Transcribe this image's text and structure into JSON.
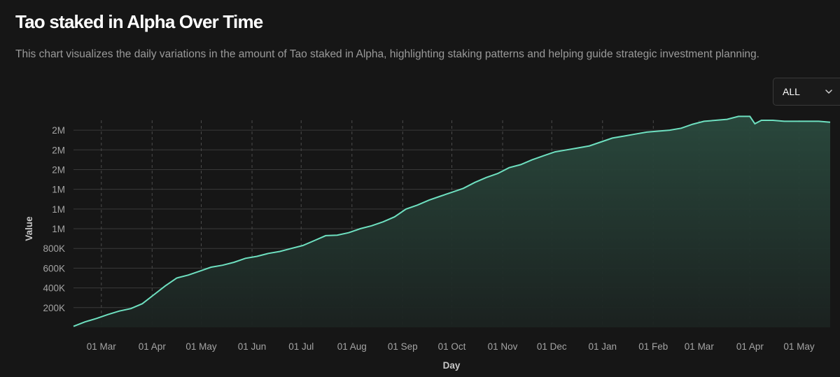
{
  "header": {
    "title": "Tao staked in Alpha Over Time",
    "subtitle": "This chart visualizes the daily variations in the amount of Tao staked in Alpha, highlighting staking patterns and helping guide strategic investment planning."
  },
  "controls": {
    "range_value": "ALL"
  },
  "icons": {
    "dropdown": "chevron-down-icon"
  },
  "colors": {
    "line": "#6ee0c0",
    "background": "#161616"
  },
  "chart_data": {
    "type": "area",
    "xlabel": "Day",
    "ylabel": "Value",
    "ylim": [
      0,
      2100000
    ],
    "y_ticks": [
      {
        "value": 200000,
        "label": "200K"
      },
      {
        "value": 400000,
        "label": "400K"
      },
      {
        "value": 600000,
        "label": "600K"
      },
      {
        "value": 800000,
        "label": "800K"
      },
      {
        "value": 1000000,
        "label": "1M"
      },
      {
        "value": 1200000,
        "label": "1M"
      },
      {
        "value": 1400000,
        "label": "1M"
      },
      {
        "value": 1600000,
        "label": "2M"
      },
      {
        "value": 1800000,
        "label": "2M"
      },
      {
        "value": 2000000,
        "label": "2M"
      }
    ],
    "x_ticks": [
      {
        "date": "2024-03-01",
        "label": "01 Mar"
      },
      {
        "date": "2024-04-01",
        "label": "01 Apr"
      },
      {
        "date": "2024-05-01",
        "label": "01 May"
      },
      {
        "date": "2024-06-01",
        "label": "01 Jun"
      },
      {
        "date": "2024-07-01",
        "label": "01 Jul"
      },
      {
        "date": "2024-08-01",
        "label": "01 Aug"
      },
      {
        "date": "2024-09-01",
        "label": "01 Sep"
      },
      {
        "date": "2024-10-01",
        "label": "01 Oct"
      },
      {
        "date": "2024-11-01",
        "label": "01 Nov"
      },
      {
        "date": "2024-12-01",
        "label": "01 Dec"
      },
      {
        "date": "2025-01-01",
        "label": "01 Jan"
      },
      {
        "date": "2025-02-01",
        "label": "01 Feb"
      },
      {
        "date": "2025-03-01",
        "label": "01 Mar"
      },
      {
        "date": "2025-04-01",
        "label": "01 Apr"
      },
      {
        "date": "2025-05-01",
        "label": "01 May"
      }
    ],
    "x": [
      "2024-02-13",
      "2024-02-20",
      "2024-02-27",
      "2024-03-05",
      "2024-03-12",
      "2024-03-19",
      "2024-03-26",
      "2024-04-02",
      "2024-04-09",
      "2024-04-16",
      "2024-04-23",
      "2024-04-30",
      "2024-05-07",
      "2024-05-14",
      "2024-05-21",
      "2024-05-28",
      "2024-06-04",
      "2024-06-11",
      "2024-06-18",
      "2024-06-25",
      "2024-07-02",
      "2024-07-09",
      "2024-07-16",
      "2024-07-23",
      "2024-07-30",
      "2024-08-06",
      "2024-08-13",
      "2024-08-20",
      "2024-08-27",
      "2024-09-03",
      "2024-09-10",
      "2024-09-17",
      "2024-09-24",
      "2024-10-01",
      "2024-10-08",
      "2024-10-15",
      "2024-10-22",
      "2024-10-29",
      "2024-11-05",
      "2024-11-12",
      "2024-11-19",
      "2024-11-26",
      "2024-12-03",
      "2024-12-10",
      "2024-12-17",
      "2024-12-24",
      "2024-12-31",
      "2025-01-07",
      "2025-01-14",
      "2025-01-21",
      "2025-01-28",
      "2025-02-04",
      "2025-02-11",
      "2025-02-18",
      "2025-02-25",
      "2025-03-04",
      "2025-03-11",
      "2025-03-18",
      "2025-03-25",
      "2025-04-01",
      "2025-04-04",
      "2025-04-08",
      "2025-04-15",
      "2025-04-22",
      "2025-04-29",
      "2025-05-06",
      "2025-05-13",
      "2025-05-20"
    ],
    "values": [
      10000,
      55000,
      90000,
      130000,
      165000,
      190000,
      240000,
      330000,
      420000,
      500000,
      530000,
      570000,
      610000,
      630000,
      660000,
      700000,
      720000,
      750000,
      770000,
      800000,
      830000,
      880000,
      930000,
      935000,
      960000,
      1000000,
      1030000,
      1070000,
      1120000,
      1200000,
      1240000,
      1290000,
      1330000,
      1370000,
      1410000,
      1470000,
      1520000,
      1560000,
      1620000,
      1650000,
      1700000,
      1740000,
      1780000,
      1800000,
      1820000,
      1840000,
      1880000,
      1920000,
      1940000,
      1960000,
      1980000,
      1990000,
      2000000,
      2020000,
      2060000,
      2090000,
      2100000,
      2110000,
      2140000,
      2140000,
      2065000,
      2100000,
      2100000,
      2090000,
      2090000,
      2090000,
      2090000,
      2080000
    ]
  }
}
